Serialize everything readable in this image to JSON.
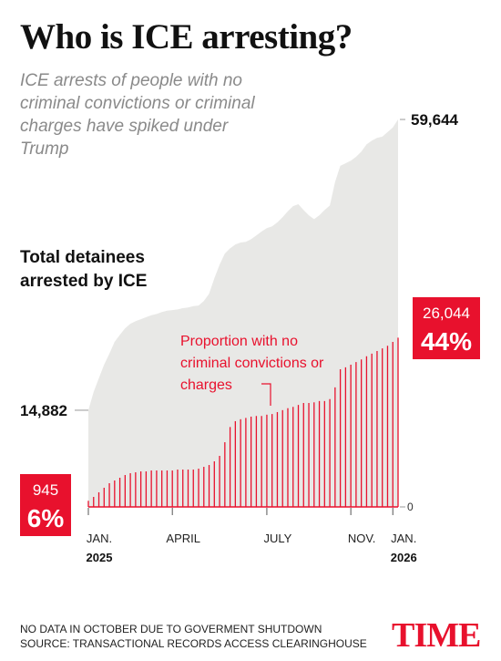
{
  "chart_data": {
    "type": "area_bars",
    "title": "Who is ICE arresting?",
    "subtitle": "ICE arrests of people with no criminal convictions or criminal charges have spiked under Trump",
    "categories": [
      "JAN.",
      null,
      null,
      null,
      null,
      null,
      null,
      null,
      null,
      null,
      null,
      null,
      null,
      null,
      null,
      null,
      "APRIL",
      null,
      null,
      null,
      null,
      null,
      null,
      null,
      null,
      null,
      null,
      null,
      null,
      null,
      null,
      null,
      null,
      null,
      "JULY",
      null,
      null,
      null,
      null,
      null,
      null,
      null,
      null,
      null,
      null,
      null,
      null,
      null,
      null,
      null,
      "NOV.",
      null,
      null,
      null,
      null,
      null,
      null,
      null,
      "JAN.",
      null
    ],
    "years": [
      "2025",
      "2026"
    ],
    "series": [
      {
        "name": "Total detainees arrested by ICE",
        "color": "#e8e8e6",
        "values": [
          14882,
          17700,
          19800,
          21900,
          23600,
          25400,
          26500,
          27500,
          28200,
          28600,
          28900,
          29200,
          29500,
          29700,
          30000,
          30200,
          30300,
          30400,
          30600,
          30700,
          30900,
          31000,
          31700,
          32800,
          35200,
          37300,
          39000,
          39800,
          40400,
          40700,
          40800,
          41200,
          41800,
          42400,
          42900,
          43200,
          43800,
          44600,
          45500,
          46300,
          46600,
          45700,
          44900,
          44300,
          44900,
          45700,
          46400,
          50000,
          52500,
          52900,
          53300,
          53900,
          54700,
          55800,
          56400,
          56800,
          57000,
          57700,
          58400,
          59644
        ],
        "value_labels": [
          "14,882",
          null,
          null,
          null,
          null,
          null,
          null,
          null,
          null,
          null,
          null,
          null,
          null,
          null,
          null,
          null,
          null,
          null,
          null,
          null,
          null,
          null,
          null,
          null,
          null,
          null,
          null,
          null,
          null,
          null,
          null,
          null,
          null,
          null,
          null,
          null,
          null,
          null,
          null,
          null,
          null,
          null,
          null,
          null,
          null,
          null,
          null,
          null,
          null,
          null,
          null,
          null,
          null,
          null,
          null,
          null,
          null,
          null,
          null,
          "59,644"
        ]
      },
      {
        "name": "Proportion with no criminal convictions or charges",
        "color": "#e8112d",
        "values": [
          945,
          1540,
          2250,
          2950,
          3650,
          4070,
          4490,
          4910,
          5190,
          5330,
          5470,
          5470,
          5610,
          5610,
          5610,
          5610,
          5610,
          5750,
          5750,
          5750,
          5750,
          5890,
          6170,
          6450,
          7020,
          7860,
          9960,
          12300,
          13200,
          13500,
          13700,
          13900,
          14000,
          14000,
          14200,
          14300,
          14600,
          14900,
          15200,
          15400,
          15700,
          16000,
          16000,
          16100,
          16300,
          16300,
          16600,
          18400,
          21200,
          21500,
          21900,
          22300,
          22700,
          23200,
          23600,
          24000,
          24400,
          24800,
          25400,
          26044
        ],
        "value_labels": [
          "945",
          null,
          null,
          null,
          null,
          null,
          null,
          null,
          null,
          null,
          null,
          null,
          null,
          null,
          null,
          null,
          null,
          null,
          null,
          null,
          null,
          null,
          null,
          null,
          null,
          null,
          null,
          null,
          null,
          null,
          null,
          null,
          null,
          null,
          null,
          null,
          null,
          null,
          null,
          null,
          null,
          null,
          null,
          null,
          null,
          null,
          null,
          null,
          null,
          null,
          null,
          null,
          null,
          null,
          null,
          null,
          null,
          null,
          null,
          "26,044"
        ]
      }
    ],
    "percents": {
      "values": [
        6,
        44
      ],
      "labels": [
        "6%",
        "44%"
      ]
    },
    "ylim": [
      0,
      60000
    ],
    "yticks": [
      0
    ],
    "notes": [
      "NO DATA IN OCTOBER DUE TO GOVERMENT SHUTDOWN",
      "SOURCE: TRANSACTIONAL RECORDS ACCESS CLEARINGHOUSE"
    ],
    "brand": "TIME"
  }
}
